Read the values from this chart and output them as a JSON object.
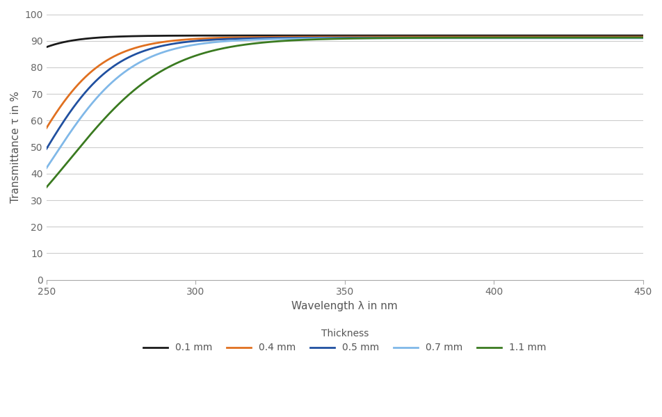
{
  "xlabel": "Wavelength λ in nm",
  "ylabel": "Transmittance τ in %",
  "xlim": [
    250,
    450
  ],
  "ylim": [
    0,
    100
  ],
  "xticks": [
    250,
    300,
    350,
    400,
    450
  ],
  "yticks": [
    0,
    10,
    20,
    30,
    40,
    50,
    60,
    70,
    80,
    90,
    100
  ],
  "legend_title": "Thickness",
  "series": [
    {
      "label": "0.1 mm",
      "color": "#1a1a1a",
      "lw": 2.0,
      "k": 0.1,
      "wl0": 220,
      "max_transmittance": 92.0
    },
    {
      "label": "0.4 mm",
      "color": "#e07020",
      "lw": 2.0,
      "k": 0.085,
      "wl0": 244,
      "max_transmittance": 91.5
    },
    {
      "label": "0.5 mm",
      "color": "#2050a0",
      "lw": 2.0,
      "k": 0.082,
      "wl0": 248,
      "max_transmittance": 91.2
    },
    {
      "label": "0.7 mm",
      "color": "#80b8e8",
      "lw": 2.0,
      "k": 0.075,
      "wl0": 252,
      "max_transmittance": 91.0
    },
    {
      "label": "1.1 mm",
      "color": "#3a7a20",
      "lw": 2.0,
      "k": 0.06,
      "wl0": 258,
      "max_transmittance": 91.2
    }
  ],
  "background_color": "#ffffff",
  "grid_color": "#cccccc",
  "tick_color": "#666666",
  "label_color": "#555555"
}
